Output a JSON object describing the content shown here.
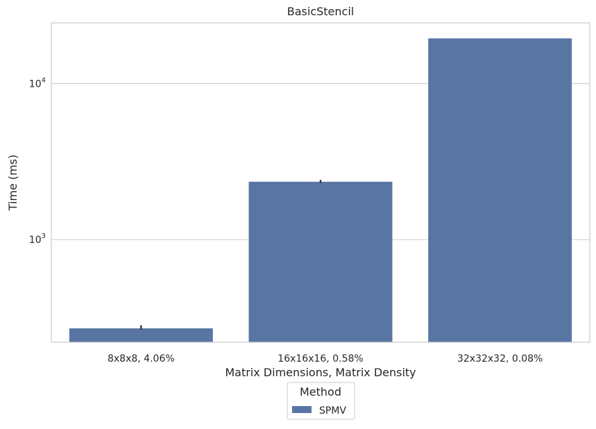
{
  "chart_data": {
    "type": "bar",
    "title": "BasicStencil",
    "xlabel": "Matrix Dimensions, Matrix Density",
    "ylabel": "Time (ms)",
    "yscale": "log",
    "ylim": [
      220,
      24500
    ],
    "y_ticks": [
      {
        "value": 1000,
        "base": "10",
        "exp": "3"
      },
      {
        "value": 10000,
        "base": "10",
        "exp": "4"
      }
    ],
    "categories": [
      "8x8x8, 4.06%",
      "16x16x16, 0.58%",
      "32x32x32, 0.08%"
    ],
    "series": [
      {
        "name": "SPMV",
        "color": "#5975a4",
        "values": [
          270,
          2350,
          19500
        ],
        "error_high": [
          280,
          2390,
          19500
        ]
      }
    ],
    "grid": "horizontal",
    "legend": {
      "title": "Method",
      "placement": "bottom-center"
    }
  }
}
